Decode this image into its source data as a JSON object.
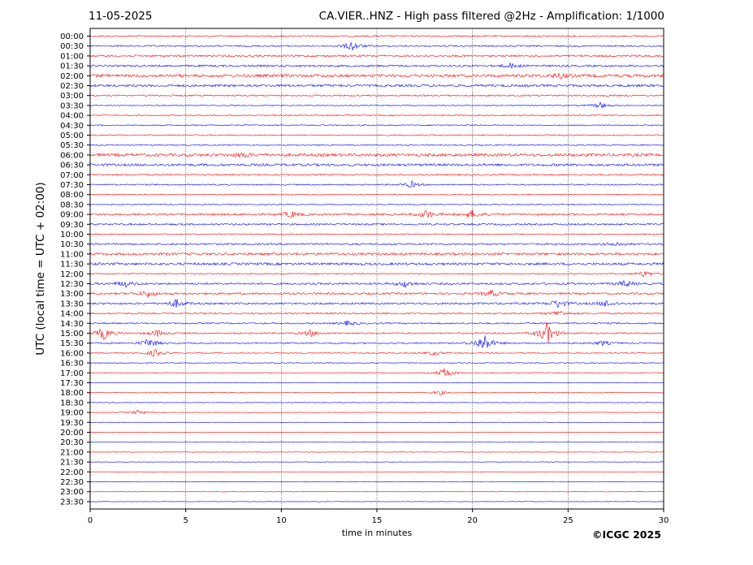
{
  "header": {
    "date": "11-05-2025",
    "title": "CA.VIER..HNZ - High pass filtered @2Hz - Amplification: 1/1000"
  },
  "footer": {
    "copyright": "©ICGC 2025"
  },
  "chart_data": {
    "type": "line",
    "subtype": "helicorder",
    "ylabel": "UTC (local time = UTC + 02:00)",
    "xlabel": "time in minutes",
    "xlim": [
      0,
      30
    ],
    "xticks": [
      0,
      5,
      10,
      15,
      20,
      25,
      30
    ],
    "vertical_grid": "dotted at every 5 minutes",
    "trace_colors": [
      "#ff0000",
      "#0000ff"
    ],
    "rows": [
      "00:00",
      "00:30",
      "01:00",
      "01:30",
      "02:00",
      "02:30",
      "03:00",
      "03:30",
      "04:00",
      "04:30",
      "05:00",
      "05:30",
      "06:00",
      "06:30",
      "07:00",
      "07:30",
      "08:00",
      "08:30",
      "09:00",
      "09:30",
      "10:00",
      "10:30",
      "11:00",
      "11:30",
      "12:00",
      "12:30",
      "13:00",
      "13:30",
      "14:00",
      "14:30",
      "15:00",
      "15:30",
      "16:00",
      "16:30",
      "17:00",
      "17:30",
      "18:00",
      "18:30",
      "19:00",
      "19:30",
      "20:00",
      "20:30",
      "21:00",
      "21:30",
      "22:00",
      "22:30",
      "23:00",
      "23:30"
    ],
    "noise_level": [
      1.5,
      1.5,
      2,
      2,
      3,
      2.5,
      1.5,
      1,
      1.2,
      1.2,
      1.2,
      1.2,
      3,
      2.5,
      1.5,
      1.3,
      1,
      1,
      2,
      1.8,
      1.2,
      1.8,
      2.5,
      2.5,
      1.2,
      2,
      2,
      2,
      1.5,
      1.5,
      1.5,
      1.5,
      1,
      0.8,
      0.8,
      0.6,
      0.6,
      0.6,
      0.6,
      0.5,
      0.5,
      0.5,
      0.5,
      0.5,
      0.5,
      0.5,
      0.5,
      0.5
    ],
    "events": [
      {
        "row": "00:30",
        "minute": 13.7,
        "amplitude": 6
      },
      {
        "row": "01:30",
        "minute": 22.0,
        "amplitude": 3
      },
      {
        "row": "02:00",
        "minute": 24.5,
        "amplitude": 3
      },
      {
        "row": "03:30",
        "minute": 26.7,
        "amplitude": 4
      },
      {
        "row": "06:00",
        "minute": 8.0,
        "amplitude": 3
      },
      {
        "row": "07:30",
        "minute": 16.8,
        "amplitude": 4
      },
      {
        "row": "09:00",
        "minute": 10.5,
        "amplitude": 4
      },
      {
        "row": "09:00",
        "minute": 17.6,
        "amplitude": 5
      },
      {
        "row": "09:00",
        "minute": 20.0,
        "amplitude": 5
      },
      {
        "row": "10:30",
        "minute": 27.5,
        "amplitude": 3
      },
      {
        "row": "12:00",
        "minute": 29.0,
        "amplitude": 4
      },
      {
        "row": "12:30",
        "minute": 1.8,
        "amplitude": 4
      },
      {
        "row": "12:30",
        "minute": 16.5,
        "amplitude": 4
      },
      {
        "row": "12:30",
        "minute": 28.0,
        "amplitude": 4
      },
      {
        "row": "13:00",
        "minute": 3.0,
        "amplitude": 4
      },
      {
        "row": "13:00",
        "minute": 21.0,
        "amplitude": 4
      },
      {
        "row": "13:30",
        "minute": 4.5,
        "amplitude": 5
      },
      {
        "row": "13:30",
        "minute": 24.5,
        "amplitude": 5
      },
      {
        "row": "13:30",
        "minute": 27.0,
        "amplitude": 4
      },
      {
        "row": "14:00",
        "minute": 24.5,
        "amplitude": 4
      },
      {
        "row": "14:30",
        "minute": 13.5,
        "amplitude": 3
      },
      {
        "row": "15:00",
        "minute": 0.7,
        "amplitude": 8
      },
      {
        "row": "15:00",
        "minute": 3.5,
        "amplitude": 4
      },
      {
        "row": "15:00",
        "minute": 11.5,
        "amplitude": 4
      },
      {
        "row": "15:00",
        "minute": 23.9,
        "amplitude": 14
      },
      {
        "row": "15:30",
        "minute": 3.1,
        "amplitude": 6
      },
      {
        "row": "15:30",
        "minute": 20.6,
        "amplitude": 12
      },
      {
        "row": "15:30",
        "minute": 26.8,
        "amplitude": 3
      },
      {
        "row": "16:00",
        "minute": 3.4,
        "amplitude": 5
      },
      {
        "row": "16:00",
        "minute": 18.0,
        "amplitude": 3
      },
      {
        "row": "17:00",
        "minute": 18.6,
        "amplitude": 7
      },
      {
        "row": "18:00",
        "minute": 18.3,
        "amplitude": 3
      },
      {
        "row": "19:00",
        "minute": 2.5,
        "amplitude": 3
      }
    ]
  }
}
